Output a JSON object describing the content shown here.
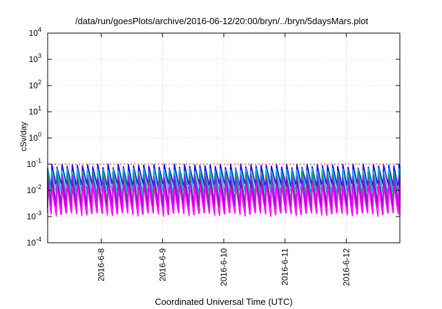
{
  "chart_data": {
    "type": "line",
    "title": "/data/run/goesPlots/archive/2016-06-12/20:00/bryn/../bryn/5daysMars.plot",
    "xlabel": "Coordinated Universal Time (UTC)",
    "ylabel": "cSv/day",
    "yscale": "log",
    "ylim": [
      0.0001,
      10000
    ],
    "y_ticks": [
      {
        "value": 0.0001,
        "base": "10",
        "exp": "-4"
      },
      {
        "value": 0.001,
        "base": "10",
        "exp": "-3"
      },
      {
        "value": 0.01,
        "base": "10",
        "exp": "-2"
      },
      {
        "value": 0.1,
        "base": "10",
        "exp": "-1"
      },
      {
        "value": 1,
        "base": "10",
        "exp": "0"
      },
      {
        "value": 10,
        "base": "10",
        "exp": "1"
      },
      {
        "value": 100,
        "base": "10",
        "exp": "2"
      },
      {
        "value": 1000,
        "base": "10",
        "exp": "3"
      },
      {
        "value": 10000,
        "base": "10",
        "exp": "4"
      }
    ],
    "xlim": [
      "2016-06-07 03:00",
      "2016-06-12 21:00"
    ],
    "x_ticks": [
      {
        "value": "2016-06-08 00:00",
        "label": "2016-6-8"
      },
      {
        "value": "2016-06-09 00:00",
        "label": "2016-6-9"
      },
      {
        "value": "2016-06-10 00:00",
        "label": "2016-6-10"
      },
      {
        "value": "2016-06-11 00:00",
        "label": "2016-6-11"
      },
      {
        "value": "2016-06-12 00:00",
        "label": "2016-6-12"
      }
    ],
    "grid": true,
    "legend": "none",
    "reference_line": {
      "value": 0.1,
      "color": "#ff0000",
      "style": "dotted"
    },
    "cycle_hours": 2,
    "series": [
      {
        "color": "#0000ff",
        "peak": 0.1,
        "trough": 0.015
      },
      {
        "color": "#00bcd4",
        "peak": 0.07,
        "trough": 0.008
      },
      {
        "color": "#2e8b57",
        "peak": 0.05,
        "trough": 0.004
      },
      {
        "color": "#8a2be2",
        "peak": 0.035,
        "trough": 0.003
      },
      {
        "color": "#9400d3",
        "peak": 0.025,
        "trough": 0.002
      },
      {
        "color": "#ff00ff",
        "peak": 0.018,
        "trough": 0.0012
      }
    ]
  }
}
